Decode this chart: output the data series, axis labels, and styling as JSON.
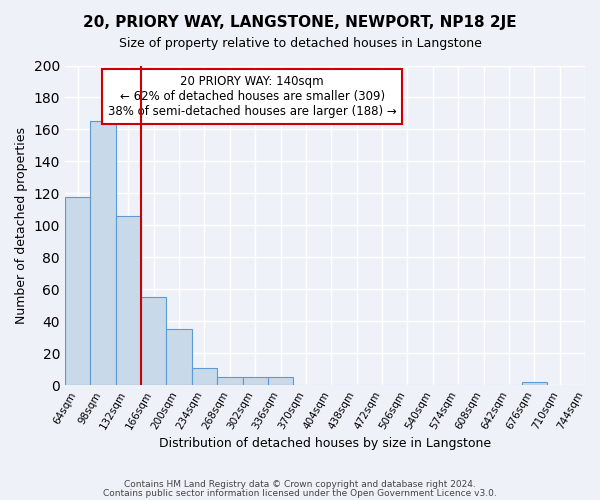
{
  "title": "20, PRIORY WAY, LANGSTONE, NEWPORT, NP18 2JE",
  "subtitle": "Size of property relative to detached houses in Langstone",
  "xlabel": "Distribution of detached houses by size in Langstone",
  "ylabel": "Number of detached properties",
  "bar_values": [
    118,
    165,
    106,
    55,
    35,
    11,
    5,
    5,
    5,
    0,
    0,
    0,
    0,
    0,
    0,
    0,
    0,
    0,
    2
  ],
  "bin_labels": [
    "64sqm",
    "98sqm",
    "132sqm",
    "166sqm",
    "200sqm",
    "234sqm",
    "268sqm",
    "302sqm",
    "336sqm",
    "370sqm",
    "404sqm",
    "438sqm",
    "472sqm",
    "506sqm",
    "540sqm",
    "574sqm",
    "608sqm",
    "642sqm",
    "676sqm",
    "710sqm",
    "744sqm"
  ],
  "bar_color": "#c8d9ea",
  "bar_edge_color": "#5b9bd5",
  "red_line_color": "#cc0000",
  "annotation_box_text": "20 PRIORY WAY: 140sqm\n← 62% of detached houses are smaller (309)\n38% of semi-detached houses are larger (188) →",
  "ylim": [
    0,
    200
  ],
  "yticks": [
    0,
    20,
    40,
    60,
    80,
    100,
    120,
    140,
    160,
    180,
    200
  ],
  "footer_line1": "Contains HM Land Registry data © Crown copyright and database right 2024.",
  "footer_line2": "Contains public sector information licensed under the Open Government Licence v3.0.",
  "bg_color": "#eef2f8",
  "grid_color": "#ffffff",
  "figsize": [
    6.0,
    5.0
  ],
  "dpi": 100
}
